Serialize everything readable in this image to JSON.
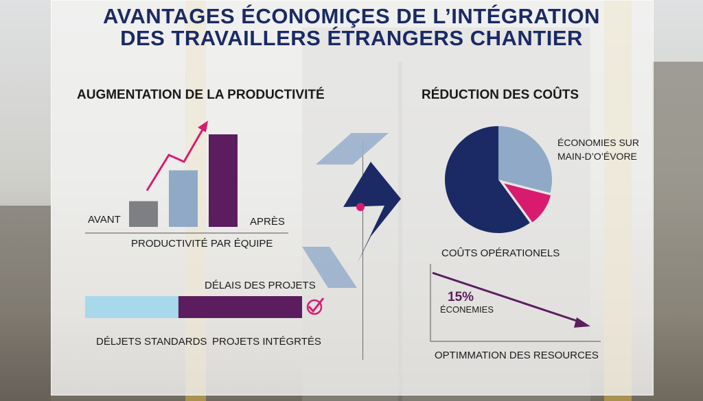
{
  "title": {
    "line1": "AVANTAGES ÉCONOMIÇES DE L’INTÉGRATION",
    "line2": "DES TRAVAILLERS ÉTRANGERS CHANTIER"
  },
  "colors": {
    "navy": "#1b2a64",
    "purple": "#5b1d5e",
    "slate": "#8fa9c6",
    "gray": "#7d7f83",
    "magenta": "#d81b6f",
    "light_blue": "#a8d8ec",
    "arrow_light": "#9ab0cc"
  },
  "left": {
    "section_title": "AUGMENTATION DE LA PRODUCTIVITÉ",
    "avant": "AVANT",
    "apres": "APRÈS",
    "productivity_caption": "PRODUCTIVITÉ PAR ÉQUIPE",
    "delays_title": "DÉLAIS DES PROJETS",
    "delay_standard": "DÉLJETS STANDARDS",
    "delay_integrated": "PROJETS INTÉGRTÉS",
    "check_icon": "checkmark-circle-icon"
  },
  "right": {
    "section_title": "RÉDUCTION DES COÛTS",
    "pie_label": "ÉCONOMIES SUR\nMAIN-D’O’ÉVORE",
    "ops_label": "COÛTS OPÉRATIONELS",
    "savings_value": "15%",
    "savings_label": "ÉCONEMIES",
    "resources_label": "OPTIMMATION DES RESOURCES"
  },
  "chart_data": [
    {
      "type": "bar",
      "title": "AUGMENTATION DE LA PRODUCTIVITÉ",
      "xlabel": "PRODUCTIVITÉ PAR ÉQUIPE",
      "categories": [
        "AVANT",
        "",
        "APRÈS"
      ],
      "values": [
        1.0,
        2.2,
        3.6
      ],
      "ylim": [
        0,
        4
      ],
      "colors": [
        "#7d7f83",
        "#8fa9c6",
        "#5b1d5e"
      ],
      "trend": "upward arrow"
    },
    {
      "type": "bar",
      "title": "DÉLAIS DES PROJETS",
      "orientation": "horizontal-stacked",
      "categories": [
        "DÉLJETS STANDARDS",
        "PROJETS INTÉGRTÉS"
      ],
      "values": [
        0.43,
        0.57
      ]
    },
    {
      "type": "pie",
      "title": "RÉDUCTION DES COÛTS",
      "slices": [
        {
          "label": "",
          "value": 60,
          "color": "#1b2a64"
        },
        {
          "label": "ÉCONOMIES SUR MAIN-D’O’ÉVORE",
          "value": 29,
          "color": "#8fa9c6"
        },
        {
          "label": "",
          "value": 11,
          "color": "#d81b6f",
          "exploded": true
        }
      ]
    },
    {
      "type": "line",
      "title": "COÛTS OPÉRATIONELS",
      "xlabel": "OPTIMMATION DES RESOURCES",
      "annotation": "15% ÉCONEMIES",
      "x": [
        0,
        1
      ],
      "y": [
        1.0,
        0.85
      ]
    }
  ]
}
